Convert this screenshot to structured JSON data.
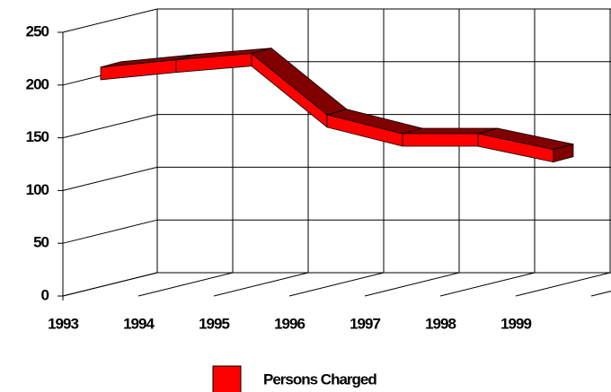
{
  "chart_data": {
    "type": "line",
    "categories": [
      "1993",
      "1994",
      "1995",
      "1996",
      "1997",
      "1998",
      "1999"
    ],
    "series": [
      {
        "name": "Persons Charged",
        "color": "#ff0000",
        "values": [
          205,
          212,
          218,
          160,
          142,
          142,
          127
        ]
      }
    ],
    "ylim": [
      0,
      250
    ],
    "yticks": [
      0,
      50,
      100,
      150,
      200,
      250
    ],
    "grid": true,
    "legend": "bottom"
  }
}
